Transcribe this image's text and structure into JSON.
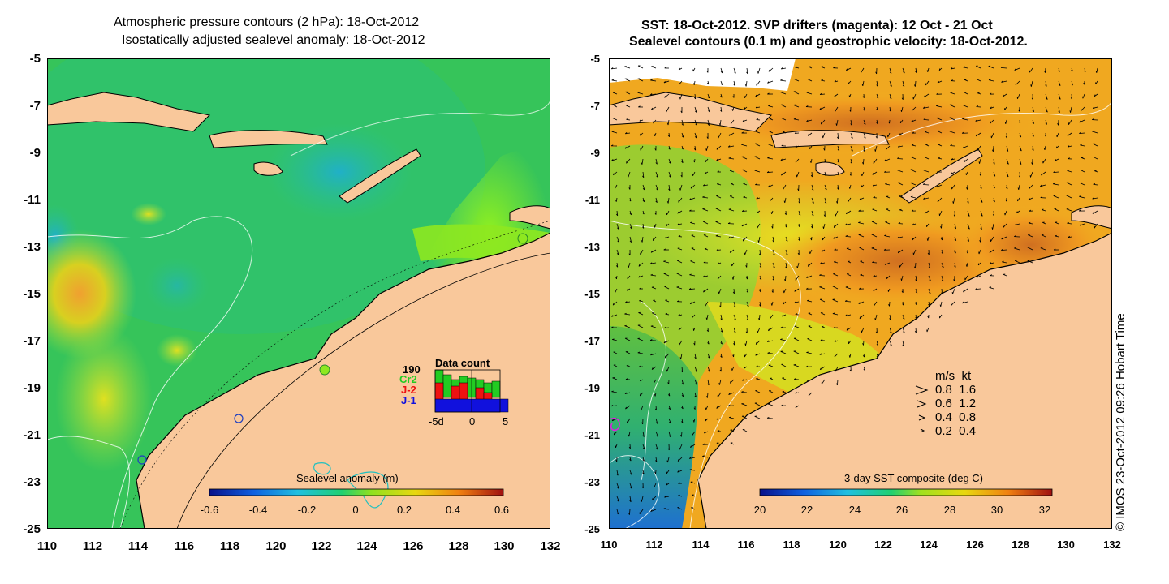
{
  "left_map": {
    "title_line1": "Atmospheric pressure contours (2 hPa): 18-Oct-2012",
    "title_line2": "Isostatically adjusted sealevel anomaly: 18-Oct-2012",
    "x_ticks": [
      "110",
      "112",
      "114",
      "116",
      "118",
      "120",
      "122",
      "124",
      "126",
      "128",
      "130",
      "132"
    ],
    "y_ticks": [
      "-5",
      "-7",
      "-9",
      "-11",
      "-13",
      "-15",
      "-17",
      "-19",
      "-21",
      "-23",
      "-25"
    ],
    "colorbar_title": "Sealevel anomaly (m)",
    "colorbar_ticks": [
      "-0.6",
      "-0.4",
      "-0.2",
      "0",
      "0.2",
      "0.4",
      "0.6"
    ],
    "data_count": {
      "title": "Data count",
      "max_label": "190",
      "series_labels": [
        "Cr2",
        "J-2",
        "J-1"
      ],
      "series_colors": [
        "#22cc22",
        "#ee1111",
        "#1111dd"
      ],
      "x_ticks": [
        "-5d",
        "0",
        "5"
      ]
    }
  },
  "right_map": {
    "title_line1": "SST: 18-Oct-2012. SVP drifters (magenta): 12 Oct - 21 Oct",
    "title_line2": "Sealevel contours (0.1 m) and geostrophic velocity: 18-Oct-2012.",
    "x_ticks": [
      "110",
      "112",
      "114",
      "116",
      "118",
      "120",
      "122",
      "124",
      "126",
      "128",
      "130",
      "132"
    ],
    "y_ticks": [
      "-5",
      "-7",
      "-9",
      "-11",
      "-13",
      "-15",
      "-17",
      "-19",
      "-21",
      "-23",
      "-25"
    ],
    "colorbar_title": "3-day SST composite (deg C)",
    "colorbar_ticks": [
      "20",
      "22",
      "24",
      "26",
      "28",
      "30",
      "32"
    ],
    "velocity_legend": {
      "header": "m/s  kt",
      "rows": [
        "0.8  1.6",
        "0.6  1.2",
        "0.4  0.8",
        "0.2  0.4"
      ]
    }
  },
  "copyright": "© IMOS 23-Oct-2012 09:26 Hobart Time",
  "colors": {
    "land": "#f9c89b",
    "sla_green": "#22cc44",
    "sst_orange": "#f0a020"
  }
}
